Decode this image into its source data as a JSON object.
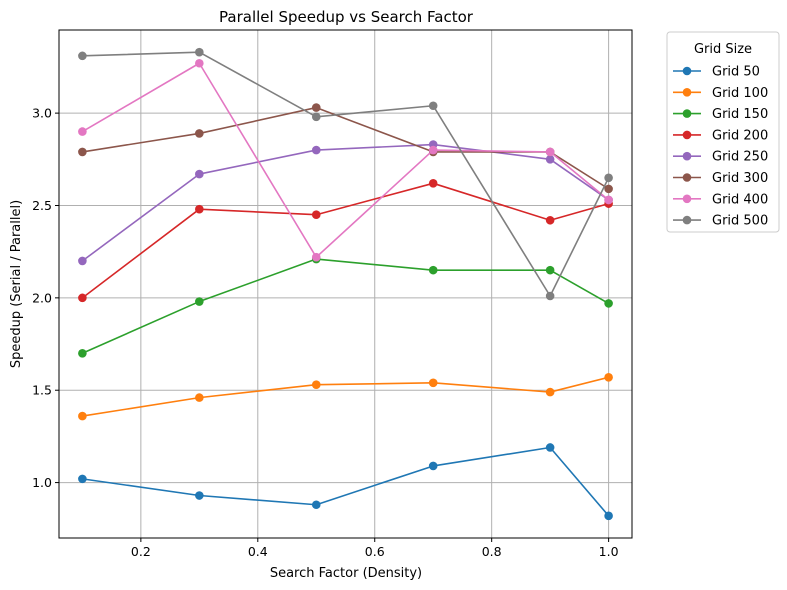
{
  "chart_data": {
    "type": "line",
    "title": "Parallel Speedup vs Search Factor",
    "xlabel": "Search Factor (Density)",
    "ylabel": "Speedup (Serial / Parallel)",
    "xlim": [
      0.06,
      1.04
    ],
    "ylim": [
      0.7,
      3.45
    ],
    "xticks": [
      0.2,
      0.4,
      0.6,
      0.8,
      1.0
    ],
    "xtick_labels": [
      "0.2",
      "0.4",
      "0.6",
      "0.8",
      "1.0"
    ],
    "yticks": [
      1.0,
      1.5,
      2.0,
      2.5,
      3.0
    ],
    "ytick_labels": [
      "1.0",
      "1.5",
      "2.0",
      "2.5",
      "3.0"
    ],
    "grid": true,
    "legend_title": "Grid Size",
    "legend_position": "outside-top-right",
    "x": [
      0.1,
      0.3,
      0.5,
      0.7,
      0.9,
      1.0
    ],
    "series": [
      {
        "name": "Grid 50",
        "color": "#1f77b4",
        "values": [
          1.02,
          0.93,
          0.88,
          1.09,
          1.19,
          0.82
        ]
      },
      {
        "name": "Grid 100",
        "color": "#ff7f0e",
        "values": [
          1.36,
          1.46,
          1.53,
          1.54,
          1.49,
          1.57
        ]
      },
      {
        "name": "Grid 150",
        "color": "#2ca02c",
        "values": [
          1.7,
          1.98,
          2.21,
          2.15,
          2.15,
          1.97
        ]
      },
      {
        "name": "Grid 200",
        "color": "#d62728",
        "values": [
          2.0,
          2.48,
          2.45,
          2.62,
          2.42,
          2.51
        ]
      },
      {
        "name": "Grid 250",
        "color": "#9467bd",
        "values": [
          2.2,
          2.67,
          2.8,
          2.83,
          2.75,
          2.53
        ]
      },
      {
        "name": "Grid 300",
        "color": "#8c564b",
        "values": [
          2.79,
          2.89,
          3.03,
          2.79,
          2.79,
          2.59
        ]
      },
      {
        "name": "Grid 400",
        "color": "#e377c2",
        "values": [
          2.9,
          3.27,
          2.22,
          2.8,
          2.79,
          2.53
        ]
      },
      {
        "name": "Grid 500",
        "color": "#7f7f7f",
        "values": [
          3.31,
          3.33,
          2.98,
          3.04,
          2.01,
          2.65
        ]
      }
    ]
  }
}
